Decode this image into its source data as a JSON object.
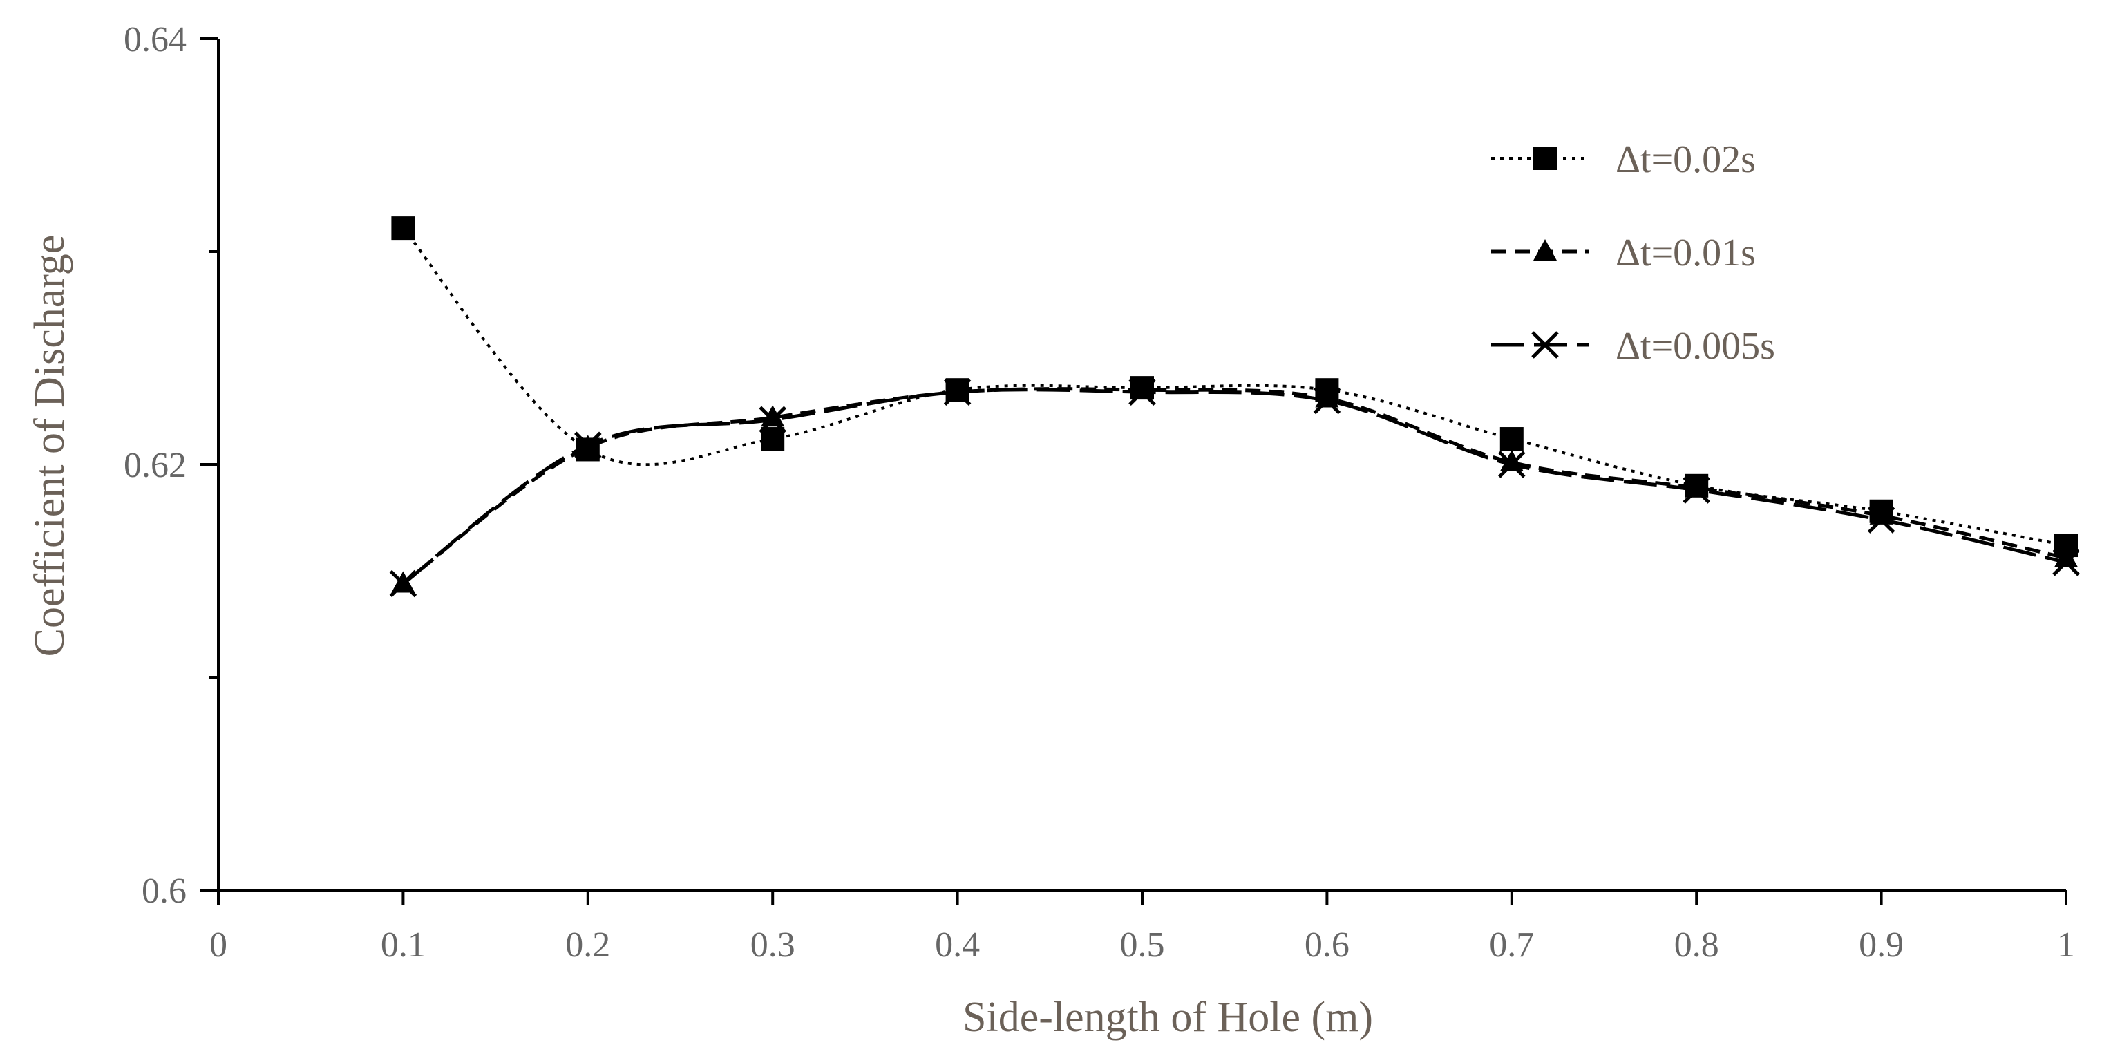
{
  "chart_data": {
    "type": "line",
    "title": "",
    "xlabel": "Side-length of Hole (m)",
    "ylabel": "Coefficient of Discharge",
    "xlim": [
      0,
      1
    ],
    "ylim": [
      0.6,
      0.64
    ],
    "x_ticks": [
      0,
      0.1,
      0.2,
      0.3,
      0.4,
      0.5,
      0.6,
      0.7,
      0.8,
      0.9,
      1
    ],
    "x_tick_labels": [
      "0",
      "0.1",
      "0.2",
      "0.3",
      "0.4",
      "0.5",
      "0.6",
      "0.7",
      "0.8",
      "0.9",
      "1"
    ],
    "y_ticks": [
      0.6,
      0.62,
      0.64
    ],
    "y_tick_labels": [
      "0.6",
      "0.62",
      "0.64"
    ],
    "x": [
      0.1,
      0.2,
      0.3,
      0.4,
      0.5,
      0.6,
      0.7,
      0.8,
      0.9,
      1.0
    ],
    "legend_position": "top-right",
    "grid": false,
    "series": [
      {
        "name": "Δt=0.02s",
        "line_style": "dotted",
        "marker": "square",
        "values": [
          0.6311,
          0.6207,
          0.6212,
          0.6235,
          0.6236,
          0.6235,
          0.6212,
          0.619,
          0.6178,
          0.6162
        ]
      },
      {
        "name": "Δt=0.01s",
        "line_style": "dashed",
        "marker": "triangle",
        "values": [
          0.6144,
          0.6208,
          0.6222,
          0.6234,
          0.6235,
          0.6231,
          0.6201,
          0.6189,
          0.6176,
          0.6156
        ]
      },
      {
        "name": "Δt=0.005s",
        "line_style": "long-dash",
        "marker": "x",
        "values": [
          0.6144,
          0.6209,
          0.6221,
          0.6234,
          0.6234,
          0.623,
          0.62,
          0.6188,
          0.6174,
          0.6154
        ]
      }
    ]
  }
}
